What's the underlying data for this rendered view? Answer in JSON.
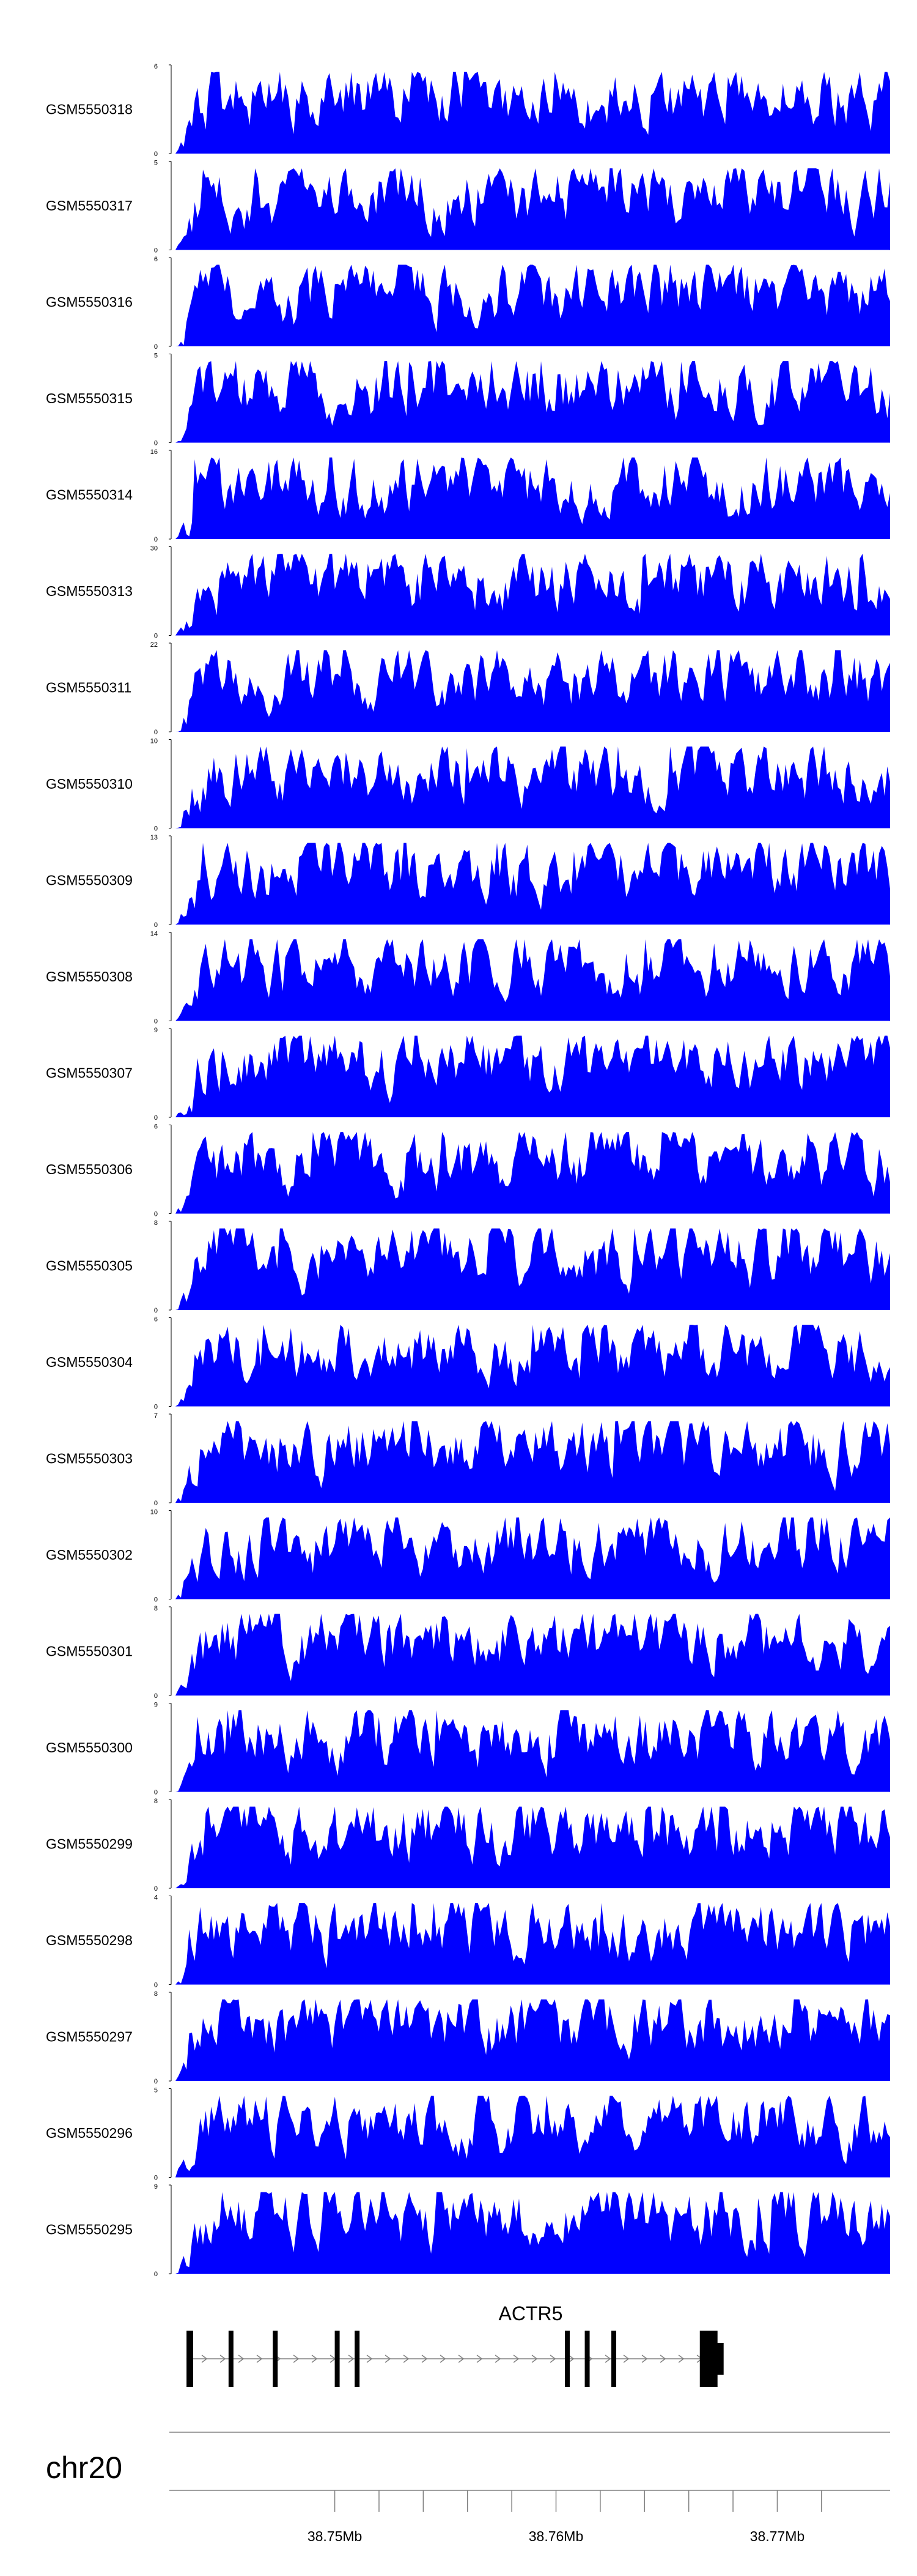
{
  "chart_data": {
    "type": "area",
    "fill_color": "#0000ff",
    "x_unit": "Mb",
    "x_range": [
      38.7428,
      38.7751
    ],
    "tracks": [
      {
        "name": "GSM5550318",
        "ymax": 6
      },
      {
        "name": "GSM5550317",
        "ymax": 5
      },
      {
        "name": "GSM5550316",
        "ymax": 6
      },
      {
        "name": "GSM5550315",
        "ymax": 5
      },
      {
        "name": "GSM5550314",
        "ymax": 16
      },
      {
        "name": "GSM5550313",
        "ymax": 30
      },
      {
        "name": "GSM5550311",
        "ymax": 22
      },
      {
        "name": "GSM5550310",
        "ymax": 10
      },
      {
        "name": "GSM5550309",
        "ymax": 13
      },
      {
        "name": "GSM5550308",
        "ymax": 14
      },
      {
        "name": "GSM5550307",
        "ymax": 9
      },
      {
        "name": "GSM5550306",
        "ymax": 6
      },
      {
        "name": "GSM5550305",
        "ymax": 8
      },
      {
        "name": "GSM5550304",
        "ymax": 6
      },
      {
        "name": "GSM5550303",
        "ymax": 7
      },
      {
        "name": "GSM5550302",
        "ymax": 10
      },
      {
        "name": "GSM5550301",
        "ymax": 8
      },
      {
        "name": "GSM5550300",
        "ymax": 9
      },
      {
        "name": "GSM5550299",
        "ymax": 8
      },
      {
        "name": "GSM5550298",
        "ymax": 4
      },
      {
        "name": "GSM5550297",
        "ymax": 8
      },
      {
        "name": "GSM5550296",
        "ymax": 5
      },
      {
        "name": "GSM5550295",
        "ymax": 9
      }
    ],
    "gene": {
      "name": "ACTR5",
      "strand": "+",
      "exons_mb": [
        [
          38.7433,
          38.7436
        ],
        [
          38.7452,
          38.7454
        ],
        [
          38.7472,
          38.7474
        ],
        [
          38.75,
          38.7502
        ],
        [
          38.7509,
          38.7511
        ],
        [
          38.7604,
          38.7605
        ],
        [
          38.7613,
          38.7615
        ],
        [
          38.7625,
          38.7626
        ],
        [
          38.7665,
          38.7673
        ]
      ]
    },
    "chromosome": "chr20",
    "x_ticks_mb": [
      38.75,
      38.752,
      38.754,
      38.756,
      38.758,
      38.76,
      38.762,
      38.764,
      38.766,
      38.768,
      38.77,
      38.772
    ],
    "x_tick_labels": [
      {
        "value": 38.75,
        "label": "38.75Mb"
      },
      {
        "value": 38.76,
        "label": "38.76Mb"
      },
      {
        "value": 38.77,
        "label": "38.77Mb"
      }
    ]
  }
}
